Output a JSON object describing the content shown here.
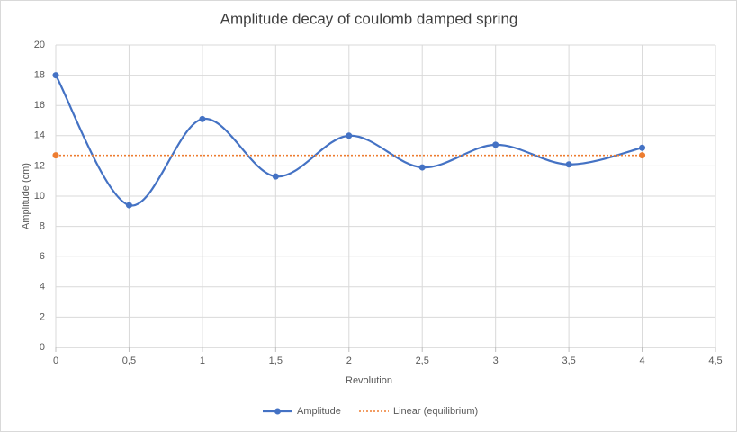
{
  "chart_data": {
    "type": "line",
    "title": "Amplitude decay of coulomb damped spring",
    "x_label": "Revolution",
    "y_label": "Amplitude (cm)",
    "x": [
      0,
      0.5,
      1,
      1.5,
      2,
      2.5,
      3,
      3.5,
      4
    ],
    "series": [
      {
        "name": "Amplitude",
        "color": "#4472c4",
        "smooth": true,
        "marker": true,
        "values": [
          18,
          9.4,
          15.1,
          11.3,
          14.0,
          11.9,
          13.4,
          12.1,
          13.2
        ]
      },
      {
        "name": "Linear (equilibrium)",
        "color": "#ed7d31",
        "dotted": true,
        "marker": true,
        "x": [
          0,
          4
        ],
        "values": [
          12.7,
          12.7
        ]
      }
    ],
    "xlim": [
      0,
      4.5
    ],
    "xticks": [
      0,
      {
        "value": 0.5,
        "label": "0,5"
      },
      1,
      {
        "value": 1.5,
        "label": "1,5"
      },
      2,
      {
        "value": 2.5,
        "label": "2,5"
      },
      3,
      {
        "value": 3.5,
        "label": "3,5"
      },
      4,
      {
        "value": 4.5,
        "label": "4,5"
      }
    ],
    "ylim": [
      0,
      20
    ],
    "yticks": [
      0,
      2,
      4,
      6,
      8,
      10,
      12,
      14,
      16,
      18,
      20
    ],
    "grid": true,
    "legend": "bottom"
  }
}
